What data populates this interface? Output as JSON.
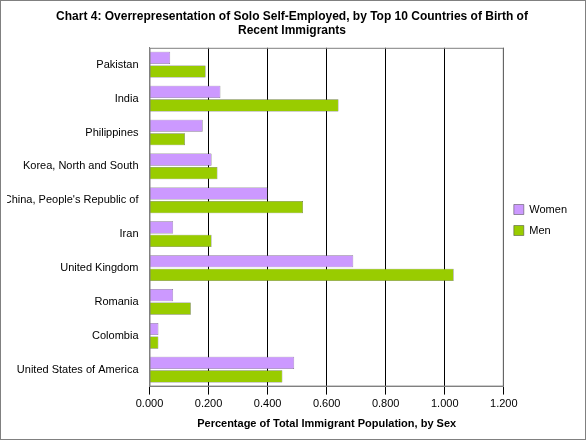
{
  "chart_data": {
    "type": "bar",
    "orientation": "horizontal",
    "title": [
      "Chart 4: Overrepresentation of Solo Self-Employed, by Top 10 Countries of Birth of",
      "Recent Immigrants"
    ],
    "x_label": "Percentage of Total Immigrant Population, by Sex",
    "categories": [
      "Pakistan",
      "India",
      "Philippines",
      "Korea, North and South",
      "China, People's Republic of",
      "Iran",
      "United Kingdom",
      "Romania",
      "Colombia",
      "United States of America"
    ],
    "series": [
      {
        "name": "Women",
        "color": "#cc99ff",
        "values": [
          0.07,
          0.24,
          0.18,
          0.21,
          0.4,
          0.08,
          0.69,
          0.08,
          0.03,
          0.49
        ]
      },
      {
        "name": "Men",
        "color": "#99cc00",
        "values": [
          0.19,
          0.64,
          0.12,
          0.23,
          0.52,
          0.21,
          1.03,
          0.14,
          0.03,
          0.45
        ]
      }
    ],
    "xlim": [
      0,
      1.2
    ],
    "xticks": [
      {
        "value": 0,
        "label": "0.000"
      },
      {
        "value": 0.2,
        "label": "0.200"
      },
      {
        "value": 0.4,
        "label": "0.400"
      },
      {
        "value": 0.6,
        "label": "0.600"
      },
      {
        "value": 0.8,
        "label": "0.800"
      },
      {
        "value": 1.0,
        "label": "1.000"
      },
      {
        "value": 1.2,
        "label": "1.200"
      }
    ],
    "grid": true,
    "legend": "right"
  }
}
